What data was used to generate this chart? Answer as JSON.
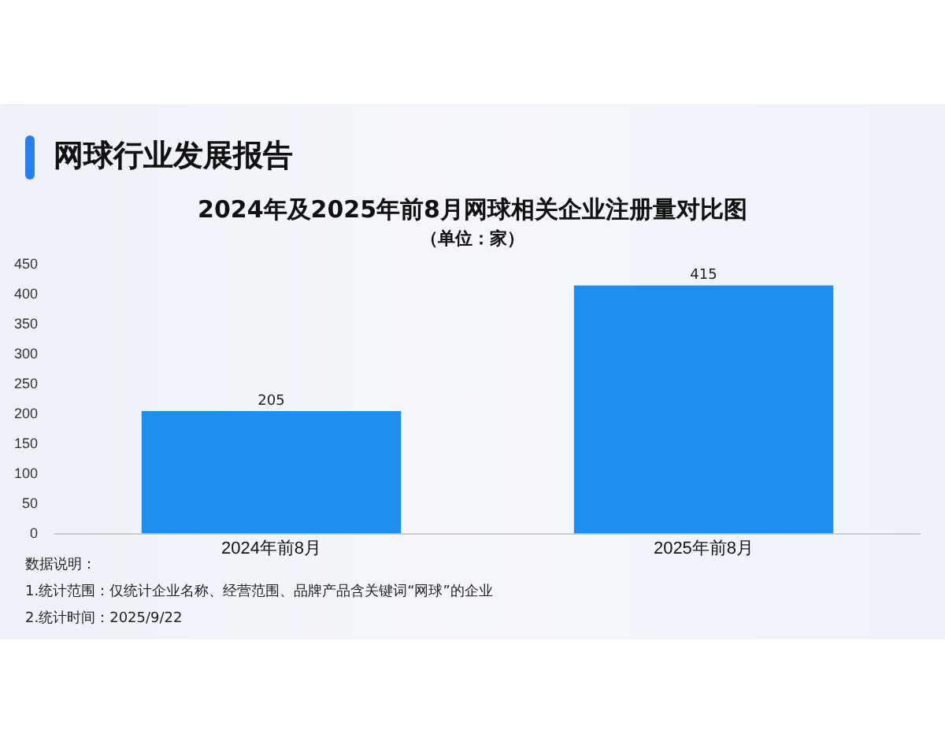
{
  "chart_data": {
    "type": "bar",
    "title": "网球行业发展报告",
    "subtitle": "2024年及2025年前8月网球相关企业注册量对比图",
    "categories": [
      "2024年前8月",
      "2025年前8月"
    ],
    "values": [
      205,
      415
    ],
    "color": "#1e8ef0",
    "ylim": [
      0,
      450
    ],
    "yticks": [
      0,
      50,
      100,
      150,
      200,
      250,
      300,
      350,
      400,
      450
    ],
    "grid": false,
    "data_labels": true,
    "annotations": [
      "（单位：家）",
      "数据说明：",
      "1.统计范围：仅统计企业名称、经营范围、品牌产品含关键词“网球”的企业",
      "2.统计时间：2025/9/22"
    ]
  }
}
